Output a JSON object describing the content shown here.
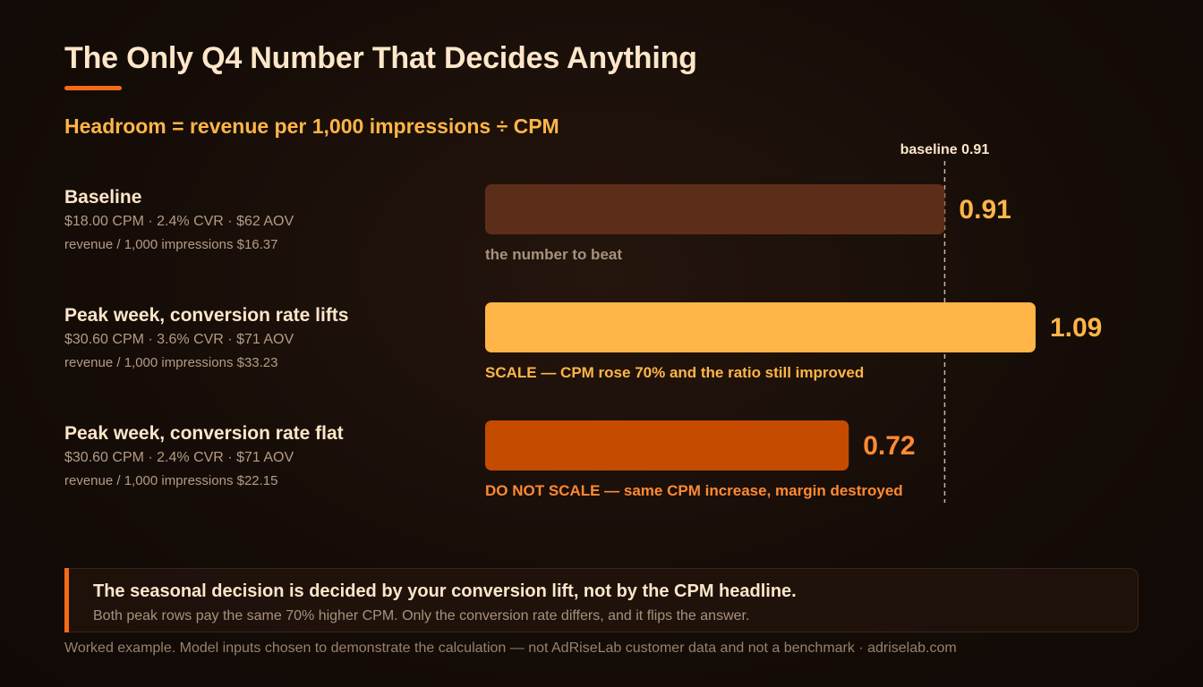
{
  "title": "The Only Q4 Number That Decides Anything",
  "subtitle": "Headroom = revenue per 1,000 impressions ÷ CPM",
  "colors": {
    "accent": "#f56a1a",
    "baseline_bar": "#5c2e1a",
    "scale_bar": "#ffb547",
    "noscale_bar": "#c44b00"
  },
  "chart_data": {
    "type": "bar",
    "orientation": "horizontal",
    "categories": [
      "Baseline",
      "Peak week, conversion rate lifts",
      "Peak week, conversion rate flat"
    ],
    "values": [
      0.91,
      1.09,
      0.72
    ],
    "value_labels": [
      "0.91",
      "1.09",
      "0.72"
    ],
    "reference_line": {
      "value": 0.91,
      "label": "baseline 0.91"
    },
    "annotations": [
      "the number to beat",
      "SCALE — CPM rose 70% and the ratio still improved",
      "DO NOT SCALE — same CPM increase, margin destroyed"
    ],
    "xlim": [
      0,
      1.09
    ],
    "grid": false,
    "legend": "none"
  },
  "rows": [
    {
      "name": "Baseline",
      "detail": "$18.00 CPM · 2.4% CVR · $62 AOV",
      "revenue": "revenue / 1,000 impressions $16.37"
    },
    {
      "name": "Peak week, conversion rate lifts",
      "detail": "$30.60 CPM · 3.6% CVR · $71 AOV",
      "revenue": "revenue / 1,000 impressions $33.23"
    },
    {
      "name": "Peak week, conversion rate flat",
      "detail": "$30.60 CPM · 2.4% CVR · $71 AOV",
      "revenue": "revenue / 1,000 impressions $22.15"
    }
  ],
  "callout": {
    "headline": "The seasonal decision is decided by your conversion lift, not by the CPM headline.",
    "body": "Both peak rows pay the same 70% higher CPM. Only the conversion rate differs, and it flips the answer."
  },
  "footer": "Worked example. Model inputs chosen to demonstrate the calculation — not AdRiseLab customer data and not a benchmark · adriselab.com"
}
